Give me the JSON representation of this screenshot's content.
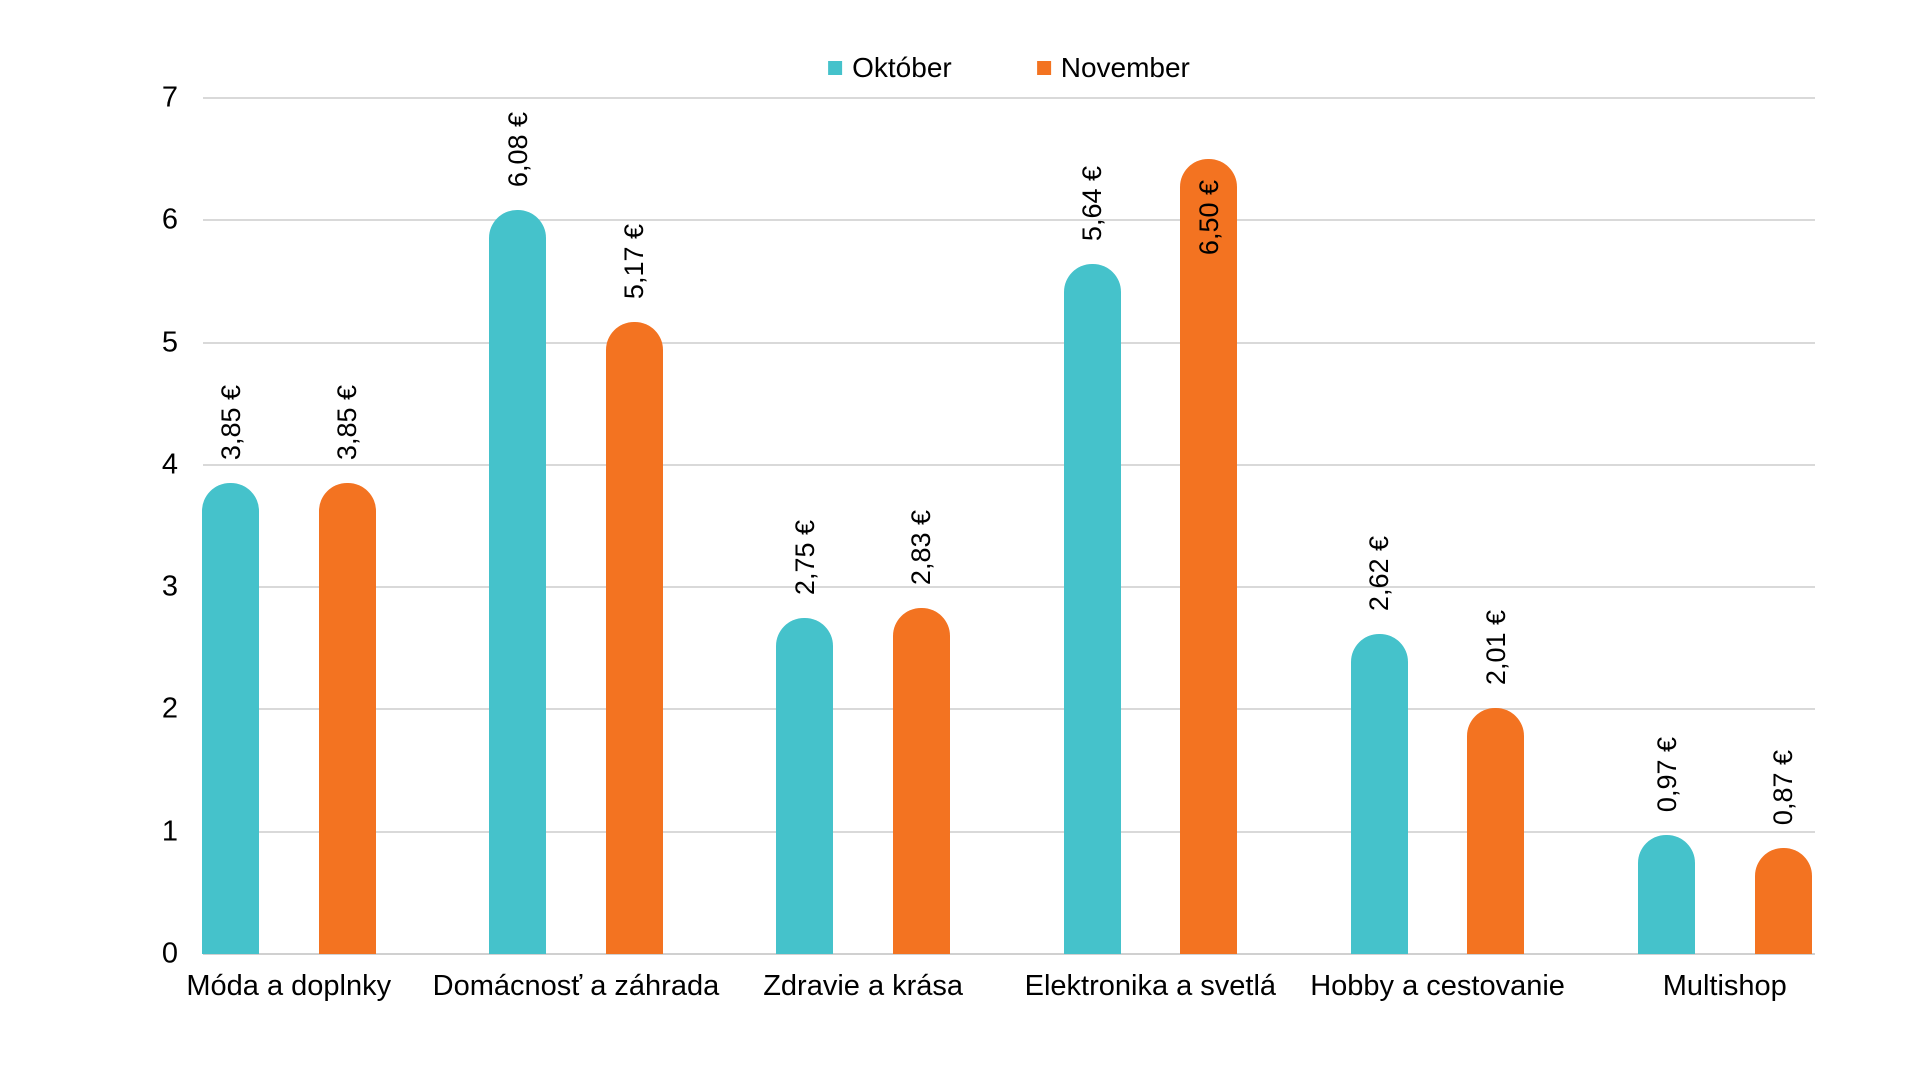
{
  "chart_data": {
    "type": "bar",
    "title": "",
    "xlabel": "",
    "ylabel": "",
    "currency_suffix": "€",
    "categories": [
      "Móda a doplnky",
      "Domácnosť a záhrada",
      "Zdravie a krása",
      "Elektronika a svetlá",
      "Hobby a cestovanie",
      "Multishop"
    ],
    "series": [
      {
        "name": "Október",
        "color": "#45c2cb",
        "values": [
          3.85,
          6.08,
          2.75,
          5.64,
          2.62,
          0.97
        ],
        "labels": [
          "3,85 €",
          "6,08 €",
          "2,75 €",
          "5,64 €",
          "2,62 €",
          "0,97 €"
        ],
        "label_inside": [
          false,
          false,
          false,
          false,
          false,
          false
        ]
      },
      {
        "name": "November",
        "color": "#f37321",
        "values": [
          3.85,
          5.17,
          2.83,
          6.5,
          2.01,
          0.87
        ],
        "labels": [
          "3,85 €",
          "5,17 €",
          "2,83 €",
          "6,50 €",
          "2,01 €",
          "0,87 €"
        ],
        "label_inside": [
          false,
          false,
          false,
          true,
          false,
          false
        ]
      }
    ],
    "ylim": [
      0,
      7
    ],
    "yticks": [
      "0",
      "1",
      "2",
      "3",
      "4",
      "5",
      "6",
      "7"
    ],
    "grid": true,
    "legend_position": "top",
    "gridline_color": "#d9d9d9",
    "label_color": "#000000"
  }
}
